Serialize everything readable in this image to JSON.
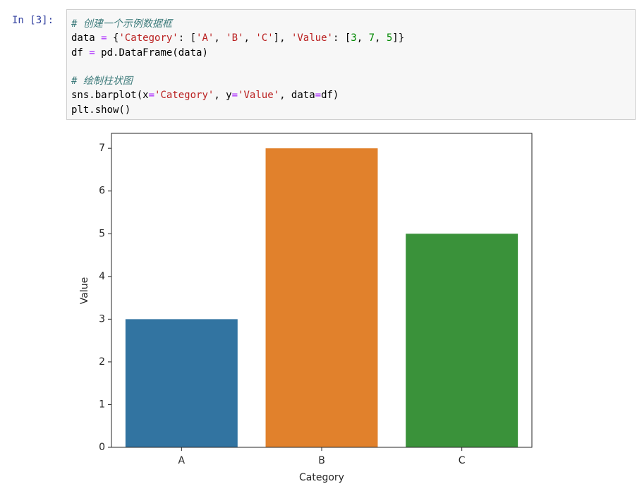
{
  "cell": {
    "prompt": "In [3]:",
    "code": [
      [
        {
          "text": "# 创建一个示例数据框",
          "color": "#3d7b7b",
          "italic": true
        }
      ],
      [
        {
          "text": "data ",
          "color": "#000000"
        },
        {
          "text": "=",
          "color": "#aa22ff"
        },
        {
          "text": " {",
          "color": "#000000"
        },
        {
          "text": "'Category'",
          "color": "#ba2121"
        },
        {
          "text": ": [",
          "color": "#000000"
        },
        {
          "text": "'A'",
          "color": "#ba2121"
        },
        {
          "text": ", ",
          "color": "#000000"
        },
        {
          "text": "'B'",
          "color": "#ba2121"
        },
        {
          "text": ", ",
          "color": "#000000"
        },
        {
          "text": "'C'",
          "color": "#ba2121"
        },
        {
          "text": "], ",
          "color": "#000000"
        },
        {
          "text": "'Value'",
          "color": "#ba2121"
        },
        {
          "text": ": [",
          "color": "#000000"
        },
        {
          "text": "3",
          "color": "#008800"
        },
        {
          "text": ", ",
          "color": "#000000"
        },
        {
          "text": "7",
          "color": "#008800"
        },
        {
          "text": ", ",
          "color": "#000000"
        },
        {
          "text": "5",
          "color": "#008800"
        },
        {
          "text": "]}",
          "color": "#000000"
        }
      ],
      [
        {
          "text": "df ",
          "color": "#000000"
        },
        {
          "text": "=",
          "color": "#aa22ff"
        },
        {
          "text": " pd.DataFrame(data)",
          "color": "#000000"
        }
      ],
      [],
      [
        {
          "text": "# 绘制柱状图",
          "color": "#3d7b7b",
          "italic": true
        }
      ],
      [
        {
          "text": "sns.barplot(x",
          "color": "#000000"
        },
        {
          "text": "=",
          "color": "#aa22ff"
        },
        {
          "text": "'Category'",
          "color": "#ba2121"
        },
        {
          "text": ", y",
          "color": "#000000"
        },
        {
          "text": "=",
          "color": "#aa22ff"
        },
        {
          "text": "'Value'",
          "color": "#ba2121"
        },
        {
          "text": ", data",
          "color": "#000000"
        },
        {
          "text": "=",
          "color": "#aa22ff"
        },
        {
          "text": "df)",
          "color": "#000000"
        }
      ],
      [
        {
          "text": "plt.show()",
          "color": "#000000"
        }
      ]
    ]
  },
  "chart_data": {
    "type": "bar",
    "categories": [
      "A",
      "B",
      "C"
    ],
    "values": [
      3,
      7,
      5
    ],
    "colors": [
      "#3274a1",
      "#e1812c",
      "#3a923a"
    ],
    "xlabel": "Category",
    "ylabel": "Value",
    "ylim": [
      0,
      7.35
    ],
    "yticks": [
      0,
      1,
      2,
      3,
      4,
      5,
      6,
      7
    ]
  }
}
